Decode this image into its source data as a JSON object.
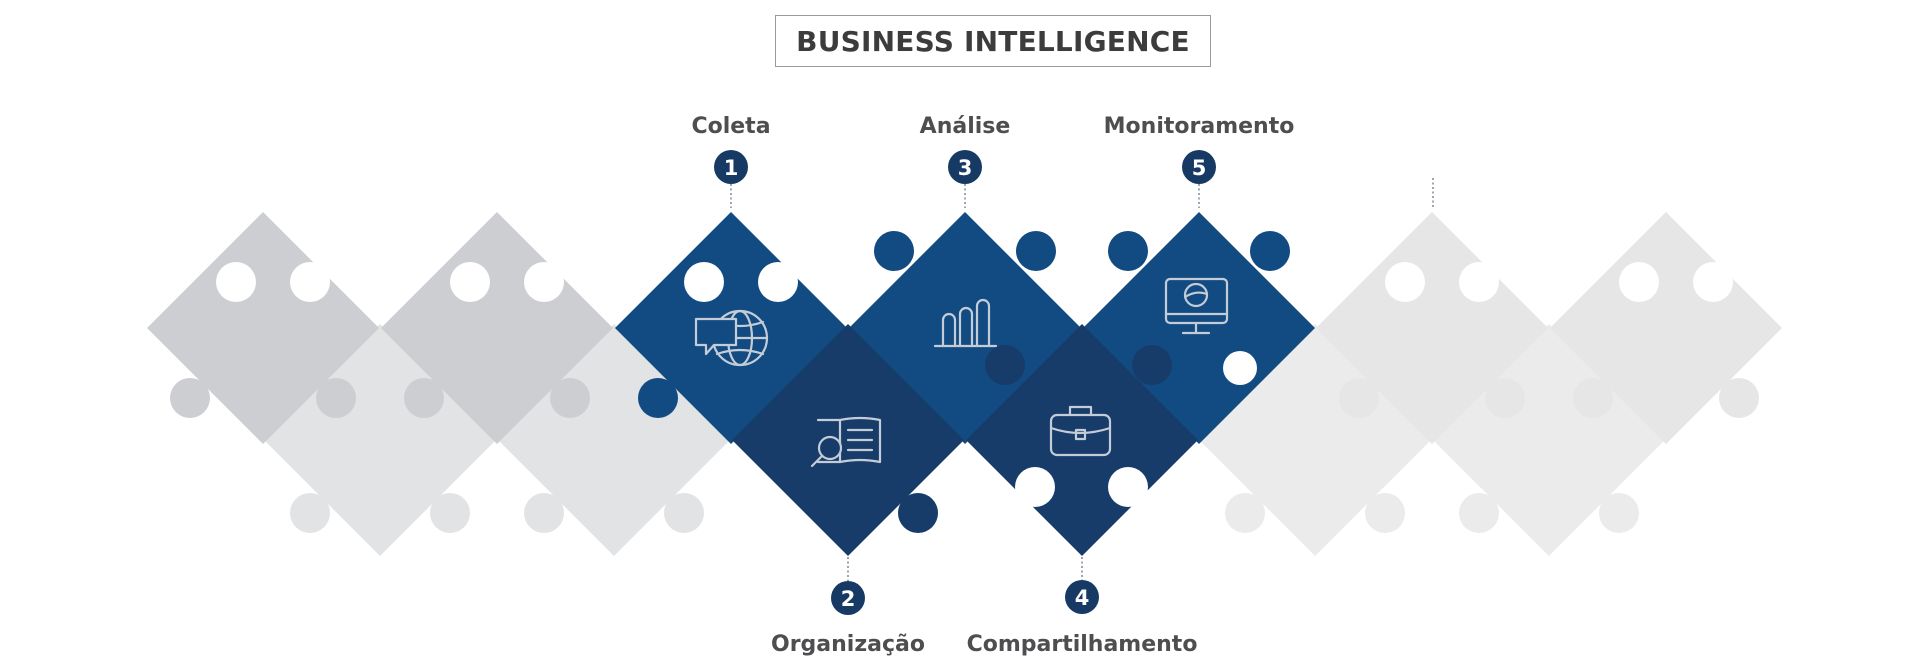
{
  "title": "BUSINESS INTELLIGENCE",
  "steps": [
    {
      "number": "1",
      "label": "Coleta",
      "icon": "globe-chat-icon"
    },
    {
      "number": "2",
      "label": "Organização",
      "icon": "document-search-icon"
    },
    {
      "number": "3",
      "label": "Análise",
      "icon": "bar-chart-icon"
    },
    {
      "number": "4",
      "label": "Compartilhamento",
      "icon": "briefcase-icon"
    },
    {
      "number": "5",
      "label": "Monitoramento",
      "icon": "monitor-icon"
    }
  ],
  "colors": {
    "blue_light": "#124b82",
    "blue_dark": "#173c69",
    "badge": "#163a64",
    "gray_dark": "#ccced1",
    "gray_mid": "#e2e3e5",
    "gray_light": "#ebebec",
    "text": "#4e4e50"
  }
}
